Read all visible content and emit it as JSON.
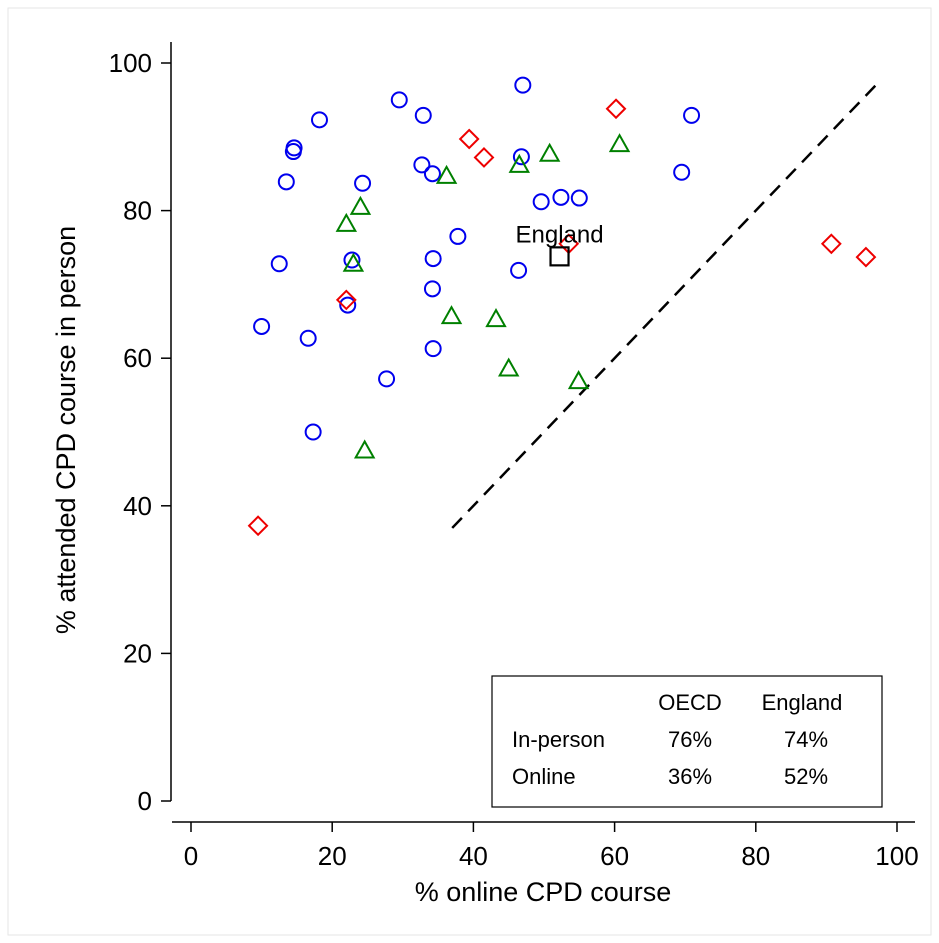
{
  "chart_data": {
    "type": "scatter",
    "xlabel": "% online CPD course",
    "ylabel": "% attended CPD course in person",
    "xlim": [
      0,
      100
    ],
    "ylim": [
      0,
      100
    ],
    "x_ticks": [
      0,
      20,
      40,
      60,
      80,
      100
    ],
    "y_ticks": [
      0,
      20,
      40,
      60,
      80,
      100
    ],
    "grid": false,
    "colors": {
      "circle": "#0000ee",
      "triangle": "#008000",
      "diamond": "#ee0000",
      "england": "#000000"
    },
    "series": [
      {
        "marker": "circle",
        "color": "#0000ee",
        "points": [
          {
            "x": 10,
            "y": 64.3
          },
          {
            "x": 12.5,
            "y": 72.8
          },
          {
            "x": 13.5,
            "y": 83.9
          },
          {
            "x": 14.5,
            "y": 88
          },
          {
            "x": 14.6,
            "y": 88.5
          },
          {
            "x": 16.6,
            "y": 62.7
          },
          {
            "x": 17.3,
            "y": 50
          },
          {
            "x": 18.2,
            "y": 92.3
          },
          {
            "x": 22.2,
            "y": 67.2
          },
          {
            "x": 22.8,
            "y": 73.3
          },
          {
            "x": 24.3,
            "y": 83.7
          },
          {
            "x": 27.7,
            "y": 57.2
          },
          {
            "x": 29.5,
            "y": 95
          },
          {
            "x": 32.7,
            "y": 86.2
          },
          {
            "x": 32.9,
            "y": 92.9
          },
          {
            "x": 34.2,
            "y": 85
          },
          {
            "x": 34.3,
            "y": 73.5
          },
          {
            "x": 34.2,
            "y": 69.4
          },
          {
            "x": 34.3,
            "y": 61.3
          },
          {
            "x": 37.8,
            "y": 76.5
          },
          {
            "x": 46.4,
            "y": 71.9
          },
          {
            "x": 46.8,
            "y": 87.3
          },
          {
            "x": 47,
            "y": 97
          },
          {
            "x": 49.6,
            "y": 81.2
          },
          {
            "x": 52.4,
            "y": 81.8
          },
          {
            "x": 55,
            "y": 81.7
          },
          {
            "x": 69.5,
            "y": 85.2
          },
          {
            "x": 70.9,
            "y": 92.9
          }
        ]
      },
      {
        "marker": "triangle",
        "color": "#008000",
        "points": [
          {
            "x": 22,
            "y": 78.2
          },
          {
            "x": 23,
            "y": 72.8
          },
          {
            "x": 24,
            "y": 80.5
          },
          {
            "x": 24.6,
            "y": 47.5
          },
          {
            "x": 36.2,
            "y": 84.7
          },
          {
            "x": 36.9,
            "y": 65.7
          },
          {
            "x": 43.2,
            "y": 65.3
          },
          {
            "x": 45,
            "y": 58.6
          },
          {
            "x": 46.5,
            "y": 86.2
          },
          {
            "x": 50.8,
            "y": 87.7
          },
          {
            "x": 54.9,
            "y": 56.9
          },
          {
            "x": 60.7,
            "y": 89
          }
        ]
      },
      {
        "marker": "diamond",
        "color": "#ee0000",
        "points": [
          {
            "x": 9.5,
            "y": 37.3
          },
          {
            "x": 22,
            "y": 67.9
          },
          {
            "x": 39.4,
            "y": 89.7
          },
          {
            "x": 41.5,
            "y": 87.2
          },
          {
            "x": 53.5,
            "y": 75.5
          },
          {
            "x": 60.2,
            "y": 93.8
          },
          {
            "x": 90.7,
            "y": 75.5
          },
          {
            "x": 95.6,
            "y": 73.7
          }
        ]
      },
      {
        "marker": "square",
        "color": "#000000",
        "points": [
          {
            "x": 52.2,
            "y": 73.8
          }
        ]
      }
    ],
    "reference_line": {
      "from": [
        37,
        37
      ],
      "to": [
        97,
        97
      ],
      "style": "dashed"
    },
    "annotations": [
      {
        "text": "England",
        "x": 52.2,
        "y": 73.8
      }
    ],
    "stats_box": {
      "placement": "bottom-right",
      "columns": [
        "",
        "OECD",
        "England"
      ],
      "rows": [
        {
          "label": "In-person",
          "oecd": "76%",
          "england": "74%"
        },
        {
          "label": "Online",
          "oecd": "36%",
          "england": "52%"
        }
      ]
    }
  }
}
